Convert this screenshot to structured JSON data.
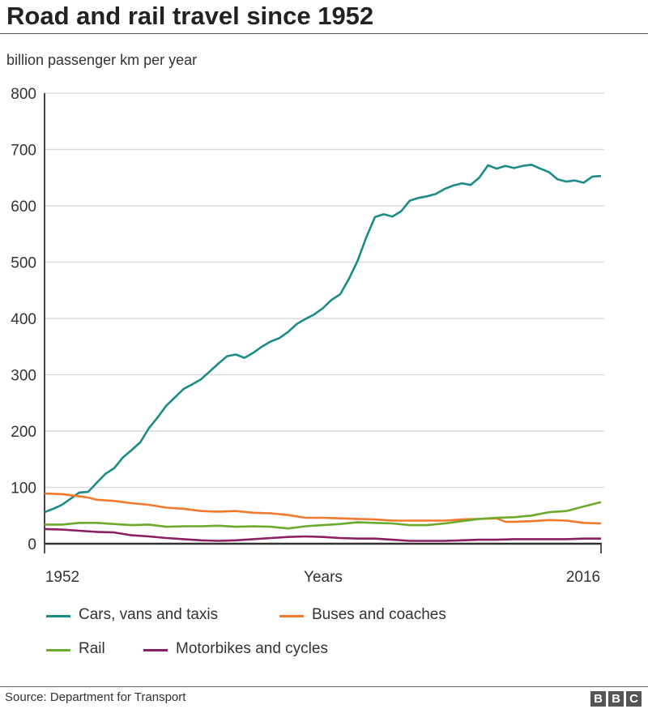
{
  "title": "Road and rail travel since 1952",
  "subtitle": "billion passenger km per year",
  "source": "Source: Department for Transport",
  "logo": [
    "B",
    "B",
    "C"
  ],
  "chart_data": {
    "type": "line",
    "title": "Road and rail travel since 1952",
    "ylabel": "billion passenger km per year",
    "xlabel": "Years",
    "xlim": [
      1952,
      2016
    ],
    "ylim": [
      0,
      800
    ],
    "x_tick_labels": [
      "1952",
      "2016"
    ],
    "y_ticks": [
      0,
      100,
      200,
      300,
      400,
      500,
      600,
      700,
      800
    ],
    "grid": true,
    "legend_placement": "bottom",
    "series": [
      {
        "name": "Cars, vans and taxis",
        "color": "#1b8b87",
        "x": [
          1952,
          1953,
          1954,
          1955,
          1956,
          1957,
          1958,
          1959,
          1960,
          1961,
          1962,
          1963,
          1964,
          1965,
          1966,
          1967,
          1968,
          1969,
          1970,
          1971,
          1972,
          1973,
          1974,
          1975,
          1976,
          1977,
          1978,
          1979,
          1980,
          1981,
          1982,
          1983,
          1984,
          1985,
          1986,
          1987,
          1988,
          1989,
          1990,
          1991,
          1992,
          1993,
          1994,
          1995,
          1996,
          1997,
          1998,
          1999,
          2000,
          2001,
          2002,
          2003,
          2004,
          2005,
          2006,
          2007,
          2008,
          2009,
          2010,
          2011,
          2012,
          2013,
          2014,
          2015,
          2016
        ],
        "values": [
          56,
          62,
          69,
          80,
          91,
          92,
          108,
          124,
          134,
          153,
          166,
          180,
          205,
          224,
          245,
          260,
          275,
          283,
          292,
          306,
          320,
          333,
          336,
          330,
          339,
          350,
          359,
          365,
          376,
          390,
          399,
          407,
          418,
          433,
          443,
          470,
          502,
          544,
          580,
          585,
          581,
          590,
          609,
          614,
          617,
          621,
          630,
          636,
          640,
          637,
          650,
          672,
          666,
          671,
          667,
          671,
          673,
          666,
          660,
          647,
          643,
          645,
          641,
          652,
          653
        ]
      },
      {
        "name": "Buses and coaches",
        "color": "#f2792b",
        "x": [
          1952,
          1954,
          1956,
          1957,
          1958,
          1960,
          1962,
          1964,
          1966,
          1968,
          1970,
          1972,
          1974,
          1976,
          1978,
          1980,
          1982,
          1984,
          1986,
          1988,
          1990,
          1992,
          1994,
          1996,
          1998,
          2000,
          2002,
          2004,
          2005,
          2006,
          2008,
          2010,
          2012,
          2014,
          2016
        ],
        "values": [
          89,
          88,
          84,
          82,
          78,
          76,
          72,
          69,
          64,
          62,
          58,
          57,
          58,
          55,
          54,
          51,
          46,
          46,
          45,
          44,
          43,
          41,
          41,
          41,
          41,
          43,
          44,
          45,
          39,
          39,
          40,
          42,
          41,
          37,
          36
        ]
      },
      {
        "name": "Rail",
        "color": "#6aab2c",
        "x": [
          1952,
          1954,
          1956,
          1958,
          1960,
          1962,
          1964,
          1966,
          1968,
          1970,
          1972,
          1974,
          1976,
          1978,
          1980,
          1982,
          1984,
          1986,
          1988,
          1990,
          1992,
          1994,
          1996,
          1998,
          2000,
          2002,
          2004,
          2006,
          2008,
          2010,
          2012,
          2014,
          2016
        ],
        "values": [
          34,
          34,
          37,
          37,
          35,
          33,
          34,
          30,
          31,
          31,
          32,
          30,
          31,
          30,
          27,
          31,
          33,
          35,
          38,
          37,
          36,
          33,
          33,
          36,
          40,
          44,
          46,
          47,
          50,
          56,
          58,
          66,
          74
        ]
      },
      {
        "name": "Motorbikes and cycles",
        "color": "#8c1f61",
        "x": [
          1952,
          1954,
          1956,
          1958,
          1960,
          1962,
          1964,
          1966,
          1968,
          1970,
          1972,
          1974,
          1976,
          1978,
          1980,
          1982,
          1984,
          1986,
          1988,
          1990,
          1992,
          1994,
          1996,
          1998,
          2000,
          2002,
          2004,
          2006,
          2008,
          2010,
          2012,
          2014,
          2016
        ],
        "values": [
          26,
          25,
          23,
          21,
          20,
          15,
          13,
          10,
          8,
          6,
          5,
          6,
          8,
          10,
          12,
          13,
          12,
          10,
          9,
          9,
          7,
          5,
          5,
          5,
          6,
          7,
          7,
          8,
          8,
          8,
          8,
          9,
          9
        ]
      }
    ]
  }
}
